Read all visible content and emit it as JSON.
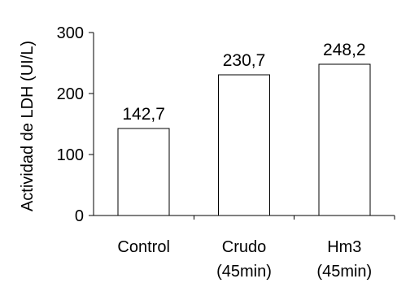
{
  "chart_data": {
    "type": "bar",
    "categories": [
      [
        "Control"
      ],
      [
        "Crudo",
        "(45min)"
      ],
      [
        "Hm3",
        "(45min)"
      ]
    ],
    "values": [
      142.7,
      230.7,
      248.2
    ],
    "data_labels": [
      "142,7",
      "230,7",
      "248,2"
    ],
    "ylabel": "Actividad de LDH (UI/L)",
    "xlabel": "",
    "ylim": [
      0,
      300
    ],
    "yticks": [
      0,
      100,
      200,
      300
    ],
    "ytick_labels": [
      "0",
      "100",
      "200",
      "300"
    ],
    "grid": false,
    "legend": "none",
    "bar_fill": "#ffffff",
    "bar_stroke": "#000000"
  }
}
